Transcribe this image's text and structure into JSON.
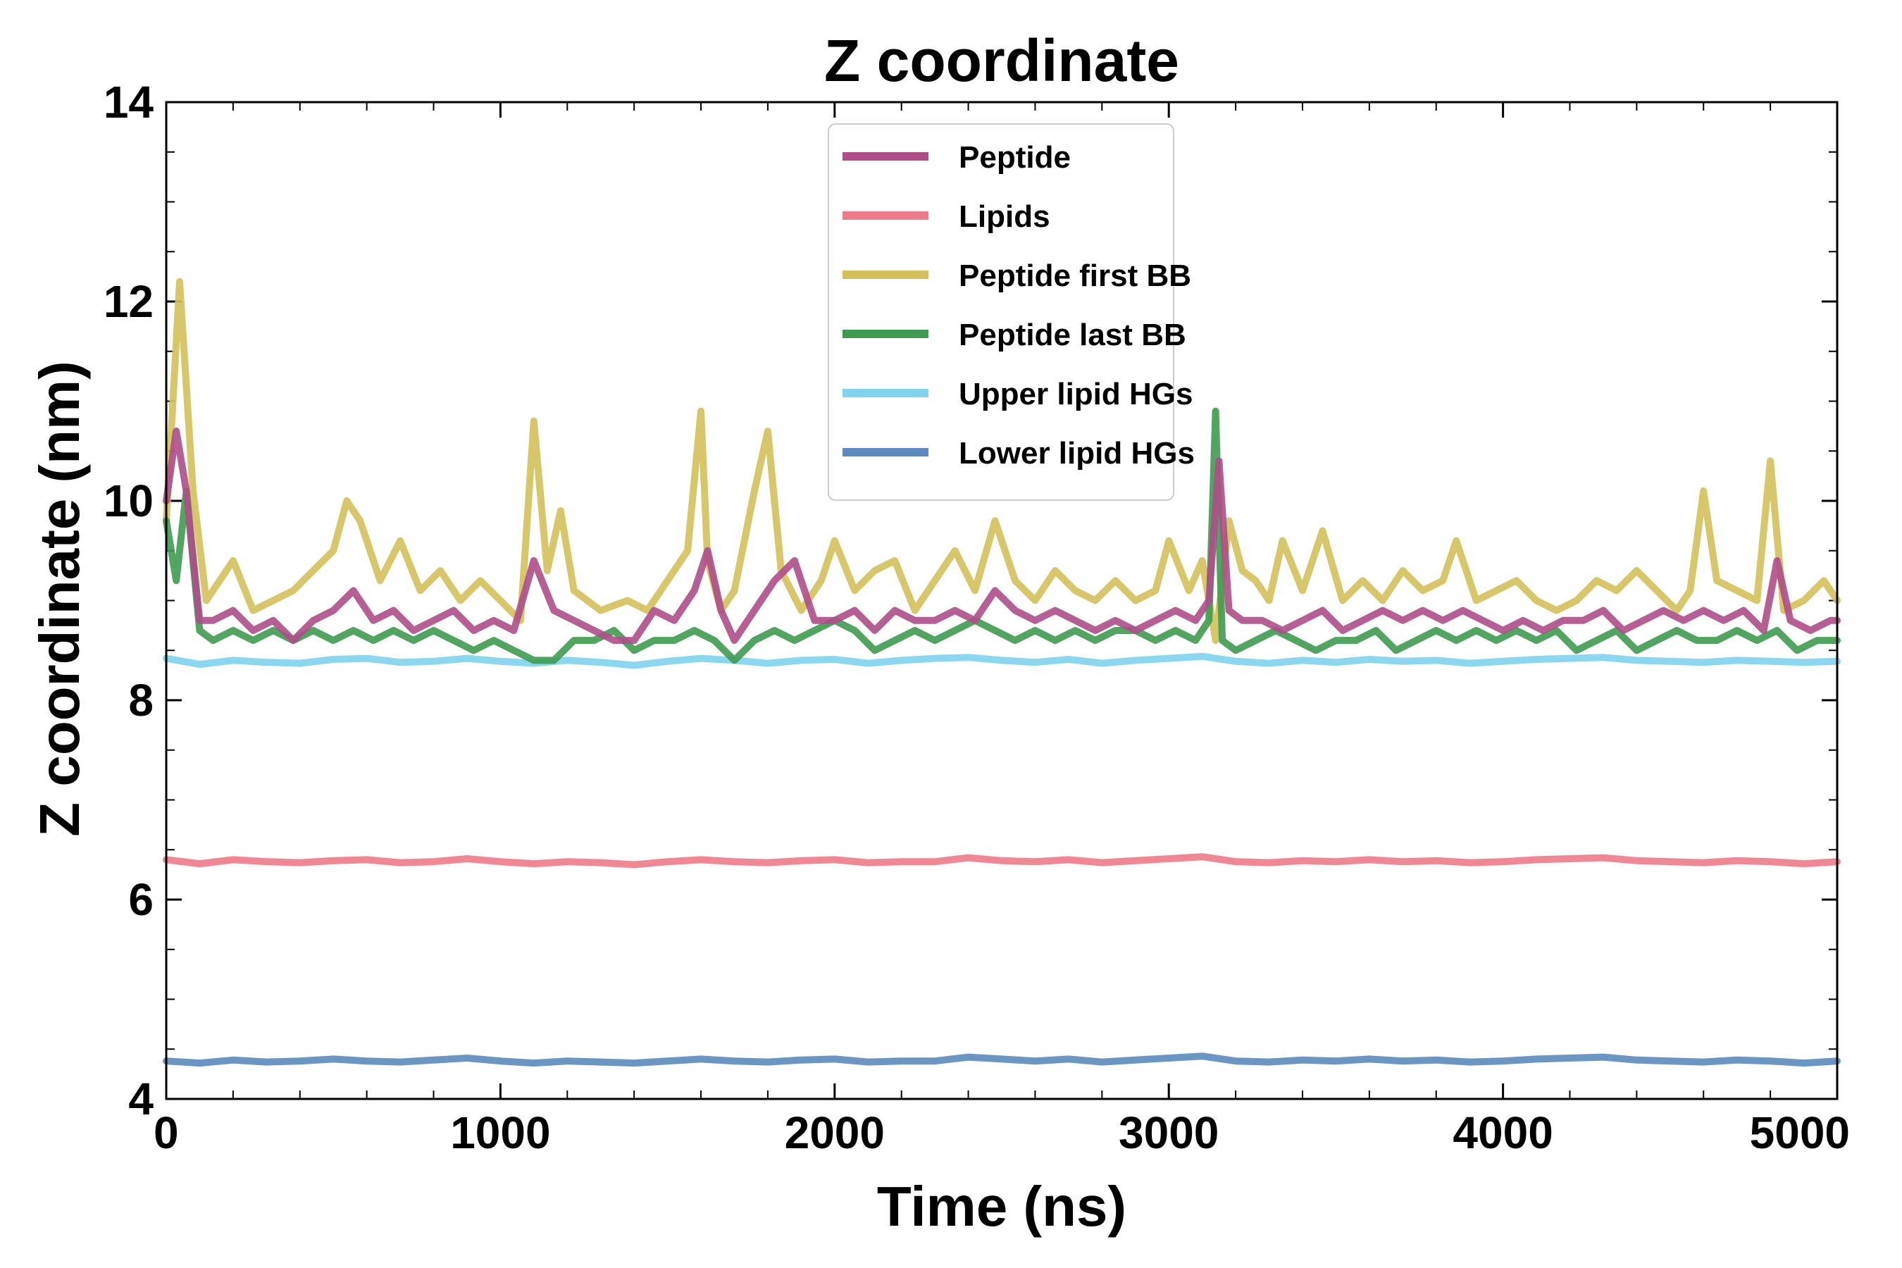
{
  "chart_data": {
    "type": "line",
    "title": "Z coordinate",
    "xlabel": "Time (ns)",
    "ylabel": "Z coordinate (nm)",
    "xlim": [
      0,
      5000
    ],
    "ylim": [
      4,
      14
    ],
    "x_ticks": [
      0,
      1000,
      2000,
      3000,
      4000,
      5000
    ],
    "x_tick_labels": [
      "0",
      "1000",
      "2000",
      "3000",
      "4000",
      "5000"
    ],
    "y_ticks": [
      4,
      6,
      8,
      10,
      12,
      14
    ],
    "y_tick_labels": [
      "4",
      "6",
      "8",
      "10",
      "12",
      "14"
    ],
    "grid": false,
    "legend_position": "top-center",
    "series": [
      {
        "name": "Lipids",
        "color": "#EE7A8A",
        "x": [
          0,
          100,
          200,
          300,
          400,
          500,
          600,
          700,
          800,
          900,
          1000,
          1100,
          1200,
          1300,
          1400,
          1500,
          1600,
          1700,
          1800,
          1900,
          2000,
          2100,
          2200,
          2300,
          2400,
          2500,
          2600,
          2700,
          2800,
          2900,
          3000,
          3100,
          3200,
          3300,
          3400,
          3500,
          3600,
          3700,
          3800,
          3900,
          4000,
          4100,
          4200,
          4300,
          4400,
          4500,
          4600,
          4700,
          4800,
          4900,
          5000
        ],
        "values": [
          6.4,
          6.36,
          6.4,
          6.38,
          6.37,
          6.39,
          6.4,
          6.37,
          6.38,
          6.41,
          6.38,
          6.36,
          6.38,
          6.37,
          6.35,
          6.38,
          6.4,
          6.38,
          6.37,
          6.39,
          6.4,
          6.37,
          6.38,
          6.38,
          6.42,
          6.39,
          6.38,
          6.4,
          6.37,
          6.39,
          6.41,
          6.43,
          6.38,
          6.37,
          6.39,
          6.38,
          6.4,
          6.38,
          6.39,
          6.37,
          6.38,
          6.4,
          6.41,
          6.42,
          6.39,
          6.38,
          6.37,
          6.39,
          6.38,
          6.36,
          6.38
        ]
      },
      {
        "name": "Lower lipid HGs",
        "color": "#5B8BBE",
        "x": [
          0,
          100,
          200,
          300,
          400,
          500,
          600,
          700,
          800,
          900,
          1000,
          1100,
          1200,
          1300,
          1400,
          1500,
          1600,
          1700,
          1800,
          1900,
          2000,
          2100,
          2200,
          2300,
          2400,
          2500,
          2600,
          2700,
          2800,
          2900,
          3000,
          3100,
          3200,
          3300,
          3400,
          3500,
          3600,
          3700,
          3800,
          3900,
          4000,
          4100,
          4200,
          4300,
          4400,
          4500,
          4600,
          4700,
          4800,
          4900,
          5000
        ],
        "values": [
          4.38,
          4.36,
          4.39,
          4.37,
          4.38,
          4.4,
          4.38,
          4.37,
          4.39,
          4.41,
          4.38,
          4.36,
          4.38,
          4.37,
          4.36,
          4.38,
          4.4,
          4.38,
          4.37,
          4.39,
          4.4,
          4.37,
          4.38,
          4.38,
          4.42,
          4.4,
          4.38,
          4.4,
          4.37,
          4.39,
          4.41,
          4.43,
          4.38,
          4.37,
          4.39,
          4.38,
          4.4,
          4.38,
          4.39,
          4.37,
          4.38,
          4.4,
          4.41,
          4.42,
          4.39,
          4.38,
          4.37,
          4.39,
          4.38,
          4.36,
          4.38
        ]
      },
      {
        "name": "Upper lipid HGs",
        "color": "#7FD3EE",
        "x": [
          0,
          100,
          200,
          300,
          400,
          500,
          600,
          700,
          800,
          900,
          1000,
          1100,
          1200,
          1300,
          1400,
          1500,
          1600,
          1700,
          1800,
          1900,
          2000,
          2100,
          2200,
          2300,
          2400,
          2500,
          2600,
          2700,
          2800,
          2900,
          3000,
          3100,
          3200,
          3300,
          3400,
          3500,
          3600,
          3700,
          3800,
          3900,
          4000,
          4100,
          4200,
          4300,
          4400,
          4500,
          4600,
          4700,
          4800,
          4900,
          5000
        ],
        "values": [
          8.42,
          8.36,
          8.4,
          8.38,
          8.37,
          8.41,
          8.42,
          8.38,
          8.39,
          8.42,
          8.39,
          8.37,
          8.4,
          8.38,
          8.35,
          8.39,
          8.42,
          8.4,
          8.37,
          8.4,
          8.41,
          8.37,
          8.4,
          8.42,
          8.43,
          8.4,
          8.38,
          8.41,
          8.37,
          8.4,
          8.42,
          8.44,
          8.39,
          8.37,
          8.4,
          8.38,
          8.41,
          8.39,
          8.4,
          8.37,
          8.39,
          8.41,
          8.42,
          8.43,
          8.4,
          8.39,
          8.38,
          8.4,
          8.39,
          8.38,
          8.39
        ]
      },
      {
        "name": "Peptide first BB",
        "color": "#D4C05A",
        "x": [
          0,
          40,
          80,
          120,
          160,
          200,
          260,
          320,
          380,
          440,
          500,
          540,
          580,
          640,
          700,
          760,
          820,
          880,
          940,
          1000,
          1060,
          1100,
          1140,
          1180,
          1220,
          1300,
          1380,
          1440,
          1500,
          1560,
          1600,
          1620,
          1660,
          1700,
          1760,
          1800,
          1840,
          1900,
          1960,
          2000,
          2060,
          2120,
          2180,
          2240,
          2300,
          2360,
          2420,
          2480,
          2540,
          2600,
          2660,
          2720,
          2780,
          2840,
          2900,
          2960,
          3000,
          3060,
          3100,
          3140,
          3180,
          3220,
          3260,
          3300,
          3340,
          3400,
          3460,
          3520,
          3580,
          3640,
          3700,
          3760,
          3820,
          3860,
          3920,
          3980,
          4040,
          4100,
          4160,
          4220,
          4280,
          4340,
          4400,
          4460,
          4520,
          4560,
          4600,
          4640,
          4700,
          4760,
          4800,
          4840,
          4900,
          4960,
          5000
        ],
        "values": [
          9.8,
          12.2,
          10.1,
          9.0,
          9.2,
          9.4,
          8.9,
          9.0,
          9.1,
          9.3,
          9.5,
          10.0,
          9.8,
          9.2,
          9.6,
          9.1,
          9.3,
          9.0,
          9.2,
          9.0,
          8.8,
          10.8,
          9.3,
          9.9,
          9.1,
          8.9,
          9.0,
          8.9,
          9.2,
          9.5,
          10.9,
          9.4,
          8.9,
          9.1,
          10.1,
          10.7,
          9.3,
          8.9,
          9.2,
          9.6,
          9.1,
          9.3,
          9.4,
          8.9,
          9.2,
          9.5,
          9.1,
          9.8,
          9.2,
          9.0,
          9.3,
          9.1,
          9.0,
          9.2,
          9.0,
          9.1,
          9.6,
          9.1,
          9.4,
          8.6,
          9.8,
          9.3,
          9.2,
          9.0,
          9.6,
          9.1,
          9.7,
          9.0,
          9.2,
          9.0,
          9.3,
          9.1,
          9.2,
          9.6,
          9.0,
          9.1,
          9.2,
          9.0,
          8.9,
          9.0,
          9.2,
          9.1,
          9.3,
          9.1,
          8.9,
          9.1,
          10.1,
          9.2,
          9.1,
          9.0,
          10.4,
          8.9,
          9.0,
          9.2,
          9.0
        ]
      },
      {
        "name": "Peptide last BB",
        "color": "#3E9B50",
        "x": [
          0,
          30,
          60,
          100,
          140,
          200,
          260,
          320,
          380,
          440,
          500,
          560,
          620,
          680,
          740,
          800,
          860,
          920,
          980,
          1040,
          1100,
          1160,
          1220,
          1280,
          1340,
          1400,
          1460,
          1520,
          1580,
          1640,
          1700,
          1760,
          1820,
          1880,
          1940,
          2000,
          2060,
          2120,
          2180,
          2240,
          2300,
          2360,
          2420,
          2480,
          2540,
          2600,
          2660,
          2720,
          2780,
          2840,
          2900,
          2960,
          3020,
          3080,
          3120,
          3140,
          3160,
          3200,
          3260,
          3320,
          3380,
          3440,
          3500,
          3560,
          3620,
          3680,
          3740,
          3800,
          3860,
          3920,
          3980,
          4040,
          4100,
          4160,
          4220,
          4280,
          4340,
          4400,
          4460,
          4520,
          4580,
          4640,
          4700,
          4760,
          4820,
          4880,
          4940,
          5000
        ],
        "values": [
          9.8,
          9.2,
          10.1,
          8.7,
          8.6,
          8.7,
          8.6,
          8.7,
          8.6,
          8.7,
          8.6,
          8.7,
          8.6,
          8.7,
          8.6,
          8.7,
          8.6,
          8.5,
          8.6,
          8.5,
          8.4,
          8.4,
          8.6,
          8.6,
          8.7,
          8.5,
          8.6,
          8.6,
          8.7,
          8.6,
          8.4,
          8.6,
          8.7,
          8.6,
          8.7,
          8.8,
          8.7,
          8.5,
          8.6,
          8.7,
          8.6,
          8.7,
          8.8,
          8.7,
          8.6,
          8.7,
          8.6,
          8.7,
          8.6,
          8.7,
          8.7,
          8.6,
          8.7,
          8.6,
          8.8,
          10.9,
          8.6,
          8.5,
          8.6,
          8.7,
          8.6,
          8.5,
          8.6,
          8.6,
          8.7,
          8.5,
          8.6,
          8.7,
          8.6,
          8.7,
          8.6,
          8.7,
          8.6,
          8.7,
          8.5,
          8.6,
          8.7,
          8.5,
          8.6,
          8.7,
          8.6,
          8.6,
          8.7,
          8.6,
          8.7,
          8.5,
          8.6,
          8.6
        ]
      },
      {
        "name": "Peptide",
        "color": "#AE4E88",
        "x": [
          0,
          30,
          60,
          100,
          140,
          200,
          260,
          320,
          380,
          440,
          500,
          560,
          620,
          680,
          740,
          800,
          860,
          920,
          980,
          1040,
          1100,
          1160,
          1220,
          1280,
          1340,
          1400,
          1460,
          1520,
          1580,
          1620,
          1660,
          1700,
          1760,
          1820,
          1880,
          1940,
          2000,
          2060,
          2120,
          2180,
          2240,
          2300,
          2360,
          2420,
          2480,
          2540,
          2600,
          2660,
          2720,
          2780,
          2840,
          2900,
          2960,
          3020,
          3080,
          3120,
          3150,
          3180,
          3220,
          3280,
          3340,
          3400,
          3460,
          3520,
          3580,
          3640,
          3700,
          3760,
          3820,
          3880,
          3940,
          4000,
          4060,
          4120,
          4180,
          4240,
          4300,
          4360,
          4420,
          4480,
          4540,
          4600,
          4660,
          4720,
          4780,
          4820,
          4860,
          4920,
          4980,
          5000
        ],
        "values": [
          10.0,
          10.7,
          10.1,
          8.8,
          8.8,
          8.9,
          8.7,
          8.8,
          8.6,
          8.8,
          8.9,
          9.1,
          8.8,
          8.9,
          8.7,
          8.8,
          8.9,
          8.7,
          8.8,
          8.7,
          9.4,
          8.9,
          8.8,
          8.7,
          8.6,
          8.6,
          8.9,
          8.8,
          9.1,
          9.5,
          8.9,
          8.6,
          8.9,
          9.2,
          9.4,
          8.8,
          8.8,
          8.9,
          8.7,
          8.9,
          8.8,
          8.8,
          8.9,
          8.8,
          9.1,
          8.9,
          8.8,
          8.9,
          8.8,
          8.7,
          8.8,
          8.7,
          8.8,
          8.9,
          8.8,
          9.0,
          10.4,
          8.9,
          8.8,
          8.8,
          8.7,
          8.8,
          8.9,
          8.7,
          8.8,
          8.9,
          8.8,
          8.9,
          8.8,
          8.9,
          8.8,
          8.7,
          8.8,
          8.7,
          8.8,
          8.8,
          8.9,
          8.7,
          8.8,
          8.9,
          8.8,
          8.9,
          8.8,
          8.9,
          8.7,
          9.4,
          8.8,
          8.7,
          8.8,
          8.8
        ]
      }
    ],
    "legend_order": [
      "Peptide",
      "Lipids",
      "Peptide first BB",
      "Peptide last BB",
      "Upper lipid HGs",
      "Lower lipid HGs"
    ]
  }
}
